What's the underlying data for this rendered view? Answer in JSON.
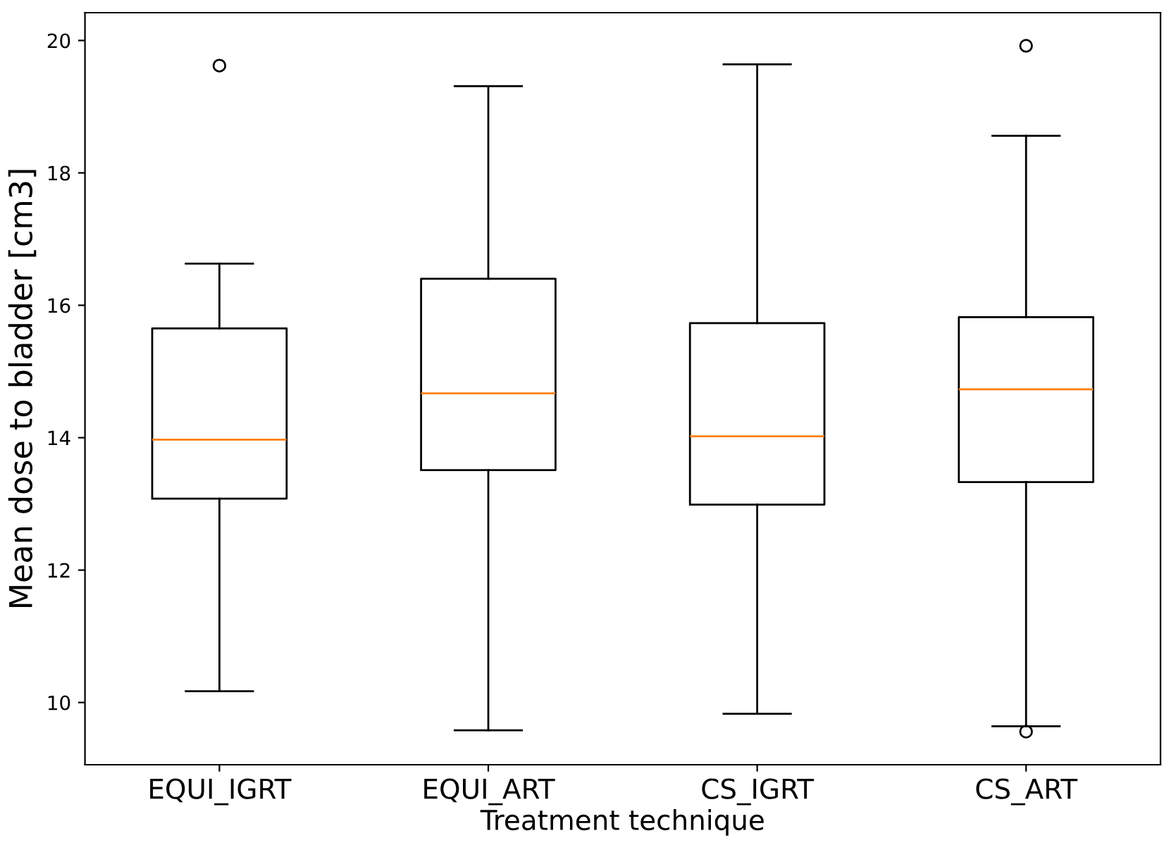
{
  "chart_data": {
    "type": "box",
    "xlabel": "Treatment technique",
    "ylabel": "Mean dose to bladder [cm3]",
    "categories": [
      "EQUI_IGRT",
      "EQUI_ART",
      "CS_IGRT",
      "CS_ART"
    ],
    "boxes": [
      {
        "low": 10.17,
        "q1": 13.08,
        "median": 13.97,
        "q3": 15.65,
        "high": 16.63,
        "outliers": [
          19.62
        ]
      },
      {
        "low": 9.58,
        "q1": 13.51,
        "median": 14.67,
        "q3": 16.4,
        "high": 19.31
      },
      {
        "low": 9.83,
        "q1": 12.99,
        "median": 14.02,
        "q3": 15.73,
        "high": 19.64
      },
      {
        "low": 9.64,
        "q1": 13.33,
        "median": 14.73,
        "q3": 15.82,
        "high": 18.56,
        "outliers": [
          19.92,
          9.56
        ]
      }
    ],
    "color": "#000000",
    "ylim": [
      9.06,
      20.42
    ],
    "yticks": [
      10,
      12,
      14,
      16,
      18,
      20
    ],
    "grid": false
  }
}
